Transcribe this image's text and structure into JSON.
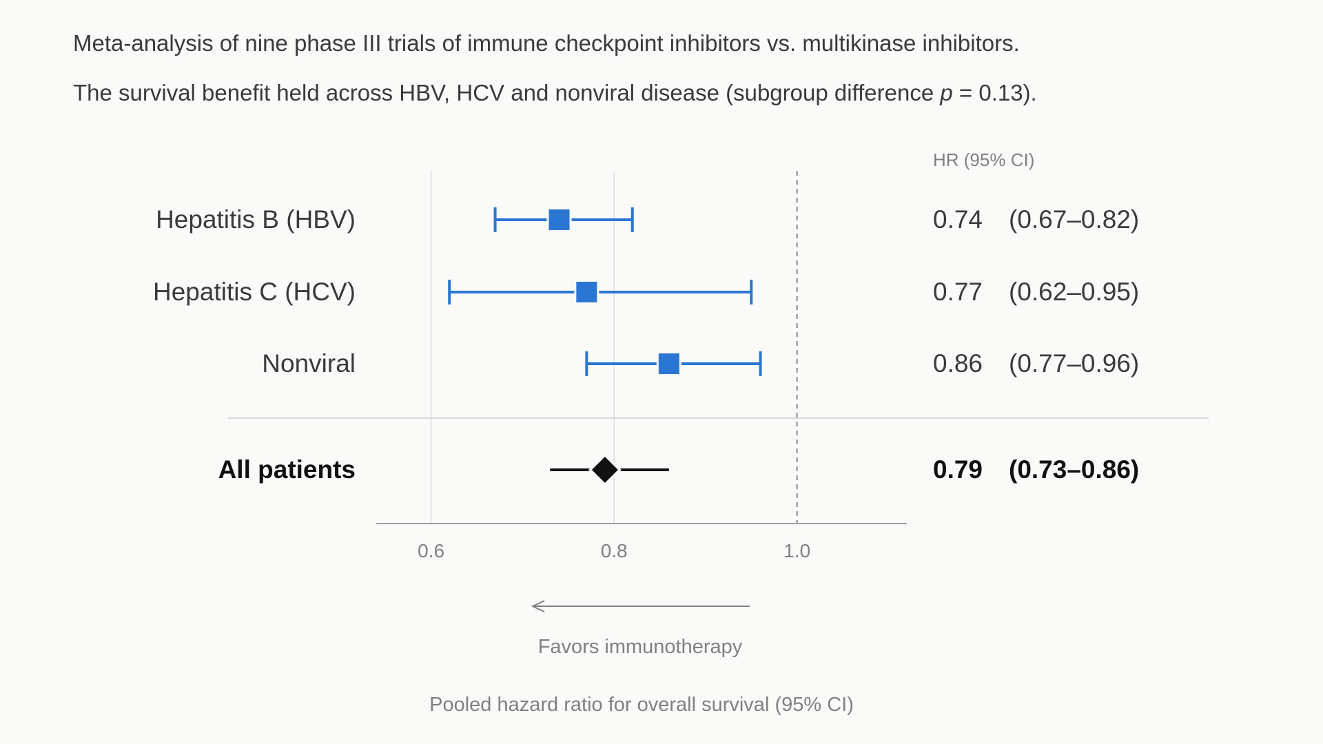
{
  "chart_data": {
    "type": "forest",
    "subtitle_line1": "Meta-analysis of nine phase III trials of immune checkpoint inhibitors vs. multikinase inhibitors.",
    "subtitle_line2_prefix": "The survival benefit held across HBV, HCV and nonviral disease (subgroup difference ",
    "subtitle_line2_p": "p",
    "subtitle_line2_suffix": " = 0.13).",
    "column_header": "HR (95% CI)",
    "xlabel": "Pooled hazard ratio for overall survival (95% CI)",
    "direction_label": "Favors immunotherapy",
    "xlim": [
      0.54,
      1.12
    ],
    "x_ticks": [
      0.6,
      0.8,
      1.0
    ],
    "x_tick_labels": [
      "0.6",
      "0.8",
      "1.0"
    ],
    "reference_line": 1.0,
    "gridlines": [
      0.6,
      0.8
    ],
    "subgroups": [
      {
        "label": "Hepatitis B (HBV)",
        "hr": 0.74,
        "lower": 0.67,
        "upper": 0.82,
        "hr_text": "0.74",
        "ci_text": "(0.67–0.82)"
      },
      {
        "label": "Hepatitis C (HCV)",
        "hr": 0.77,
        "lower": 0.62,
        "upper": 0.95,
        "hr_text": "0.77",
        "ci_text": "(0.62–0.95)"
      },
      {
        "label": "Nonviral",
        "hr": 0.86,
        "lower": 0.77,
        "upper": 0.96,
        "hr_text": "0.86",
        "ci_text": "(0.77–0.96)"
      }
    ],
    "overall": {
      "label": "All patients",
      "hr": 0.79,
      "lower": 0.73,
      "upper": 0.86,
      "hr_text": "0.79",
      "ci_text": "(0.73–0.86)"
    },
    "colors": {
      "subgroup": "#2a76d2",
      "overall": "#111111",
      "text": "#3a3a3a",
      "muted": "#808080",
      "grid": "#dddddd",
      "axis": "#a0a0a0",
      "background": "#fafaf9"
    }
  }
}
